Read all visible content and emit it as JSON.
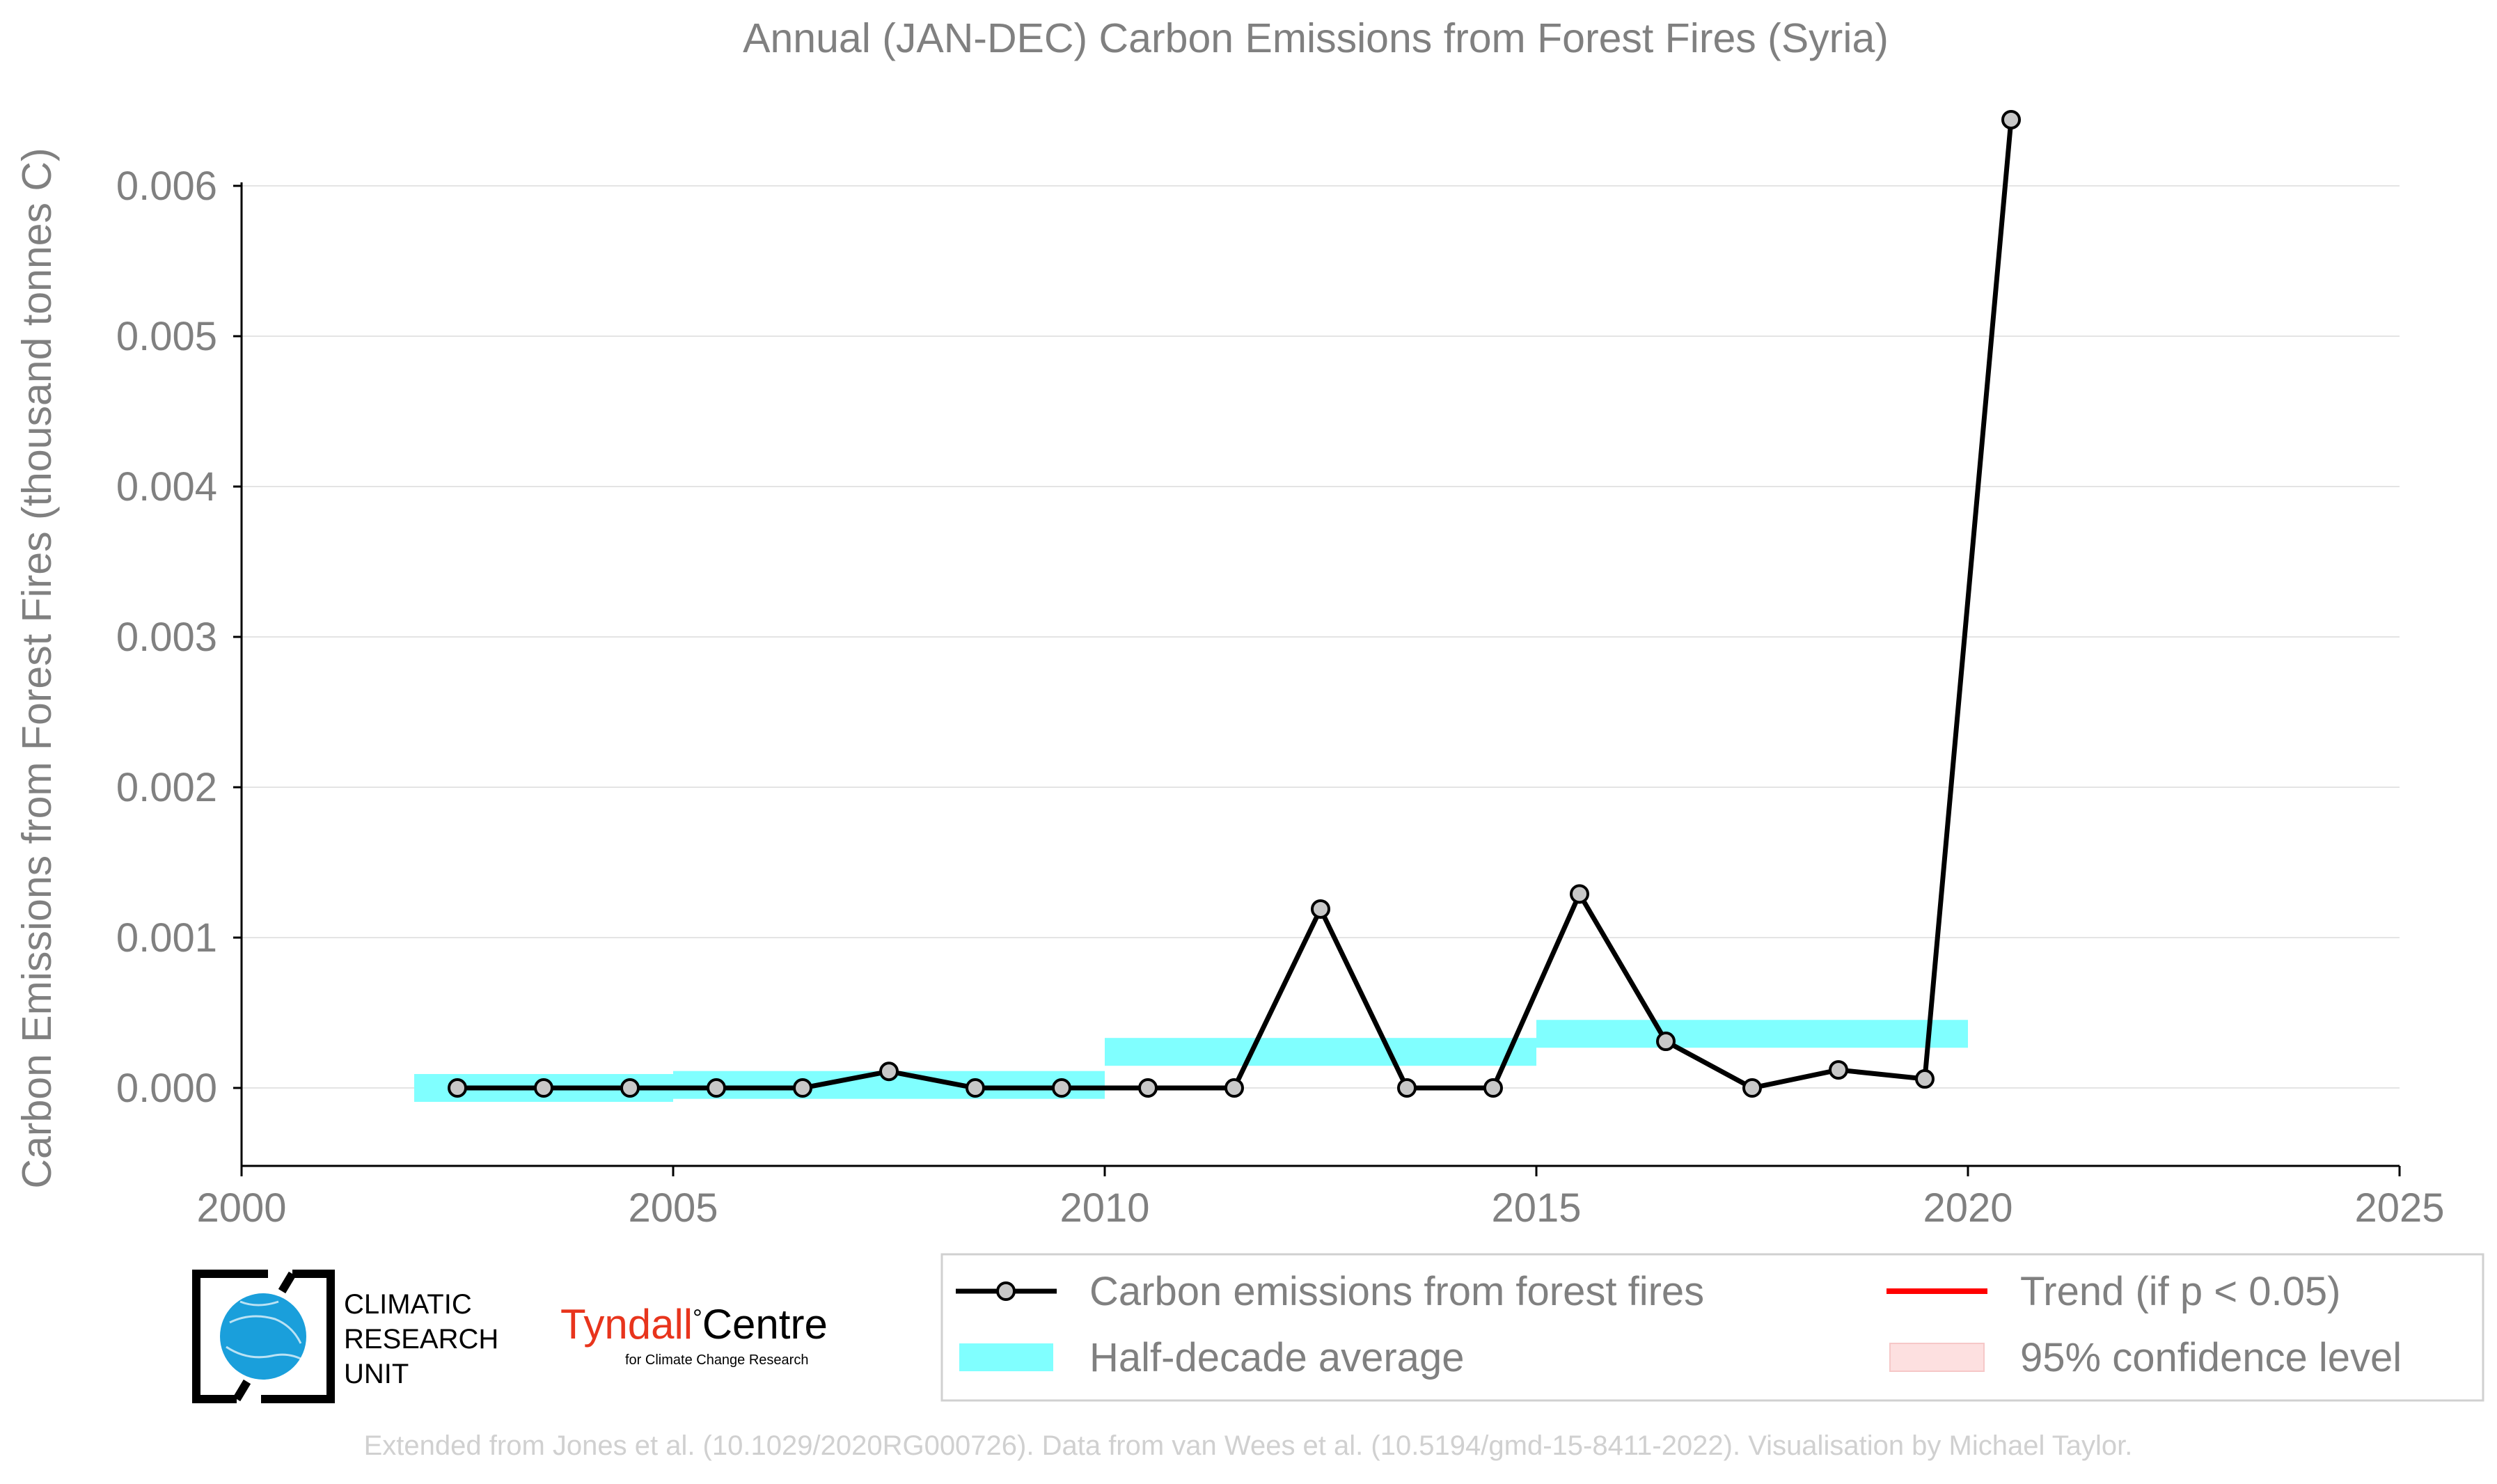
{
  "chart_data": {
    "type": "line",
    "title": "Annual (JAN-DEC) Carbon Emissions from Forest Fires (Syria)",
    "xlabel": "",
    "ylabel": "Carbon Emissions from Forest Fires (thousand tonnes C)",
    "xlim": [
      2000,
      2025
    ],
    "ylim": [
      -0.0005,
      0.0065
    ],
    "x_ticks": [
      2000,
      2005,
      2010,
      2015,
      2020,
      2025
    ],
    "y_ticks": [
      0.0,
      0.001,
      0.002,
      0.003,
      0.004,
      0.005,
      0.006
    ],
    "y_tick_labels": [
      "0.000",
      "0.001",
      "0.002",
      "0.003",
      "0.004",
      "0.005",
      "0.006"
    ],
    "grid": "horizontal",
    "series": [
      {
        "name": "Carbon emissions from forest fires",
        "color": "#000000",
        "marker_color": "#c8c8c8",
        "x": [
          2002.5,
          2003.5,
          2004.5,
          2005.5,
          2006.5,
          2007.5,
          2008.5,
          2009.5,
          2010.5,
          2011.5,
          2012.5,
          2013.5,
          2014.5,
          2015.5,
          2016.5,
          2017.5,
          2018.5,
          2019.5,
          2020.5
        ],
        "values": [
          0.0,
          0.0,
          0.0,
          0.0,
          0.0,
          0.00011,
          0.0,
          0.0,
          0.0,
          0.0,
          0.00119,
          0.0,
          0.0,
          0.00129,
          0.00031,
          0.0,
          0.00012,
          6e-05,
          0.00644
        ]
      },
      {
        "name": "Half-decade average",
        "type": "band",
        "color": "#80ffff",
        "segments": [
          {
            "x_start": 2002,
            "x_end": 2005,
            "value": 0.0
          },
          {
            "x_start": 2005,
            "x_end": 2010,
            "value": 2e-05
          },
          {
            "x_start": 2010,
            "x_end": 2015,
            "value": 0.00024
          },
          {
            "x_start": 2015,
            "x_end": 2020,
            "value": 0.00036
          }
        ]
      }
    ],
    "legend": {
      "placement": "bottom-right",
      "items": [
        {
          "label": "Carbon emissions from forest fires",
          "kind": "line-marker",
          "color": "#000000"
        },
        {
          "label": "Trend (if p < 0.05)",
          "kind": "line",
          "color": "#ff0000"
        },
        {
          "label": "Half-decade average",
          "kind": "band",
          "color": "#80ffff"
        },
        {
          "label": "95% confidence level",
          "kind": "band",
          "color": "#fde0e0"
        }
      ]
    }
  },
  "logos": {
    "cru_line1": "CLIMATIC",
    "cru_line2": "RESEARCH",
    "cru_line3": "UNIT",
    "tyndall_name": "Tyndall",
    "tyndall_degree": "°",
    "tyndall_centre": "Centre",
    "tyndall_sub": "for Climate Change Research",
    "tyndall_color": "#e8341c",
    "cru_globe_color": "#1a9fdb"
  },
  "footer": "Extended from Jones et al. (10.1029/2020RG000726). Data from van Wees et al. (10.5194/gmd-15-8411-2022). Visualisation by Michael Taylor."
}
